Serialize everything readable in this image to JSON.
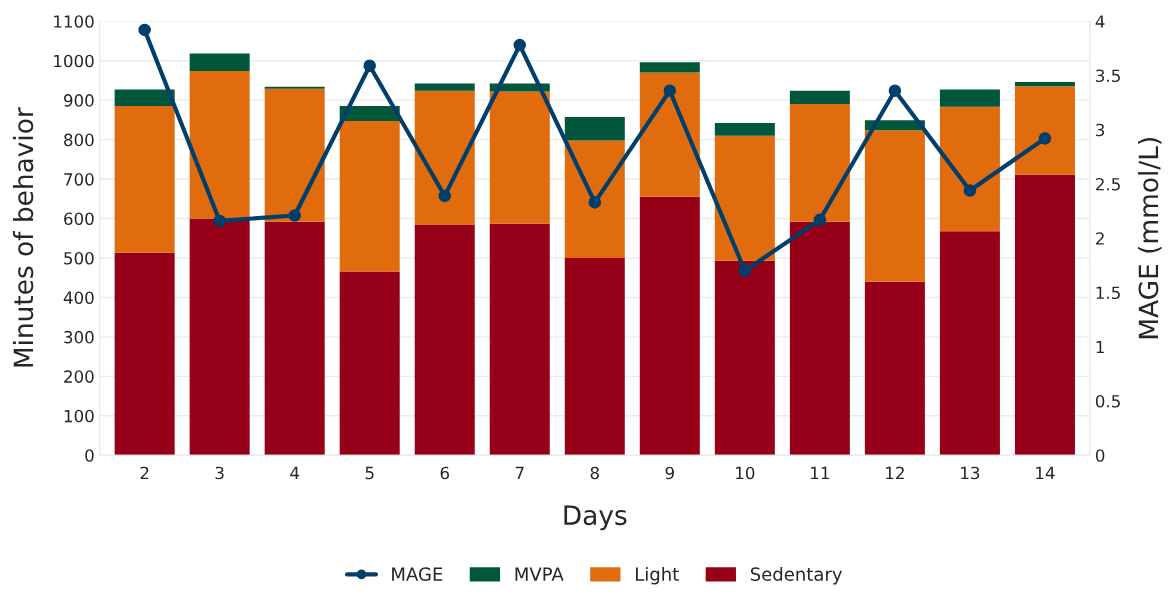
{
  "chart_data": {
    "type": "bar",
    "stacked": true,
    "xlabel": "Days",
    "ylabel": "Minutes of behavior",
    "y2label": "MAGE (mmol/L)",
    "categories": [
      "2",
      "3",
      "4",
      "5",
      "6",
      "7",
      "8",
      "9",
      "10",
      "11",
      "12",
      "13",
      "14"
    ],
    "series": [
      {
        "name": "Sedentary",
        "color": "#960018",
        "values": [
          513,
          600,
          592,
          466,
          585,
          587,
          500,
          655,
          493,
          592,
          440,
          568,
          711
        ]
      },
      {
        "name": "Light",
        "color": "#e06c0e",
        "values": [
          372,
          374,
          337,
          381,
          339,
          335,
          298,
          315,
          317,
          298,
          384,
          315,
          224
        ]
      },
      {
        "name": "MVPA",
        "color": "#00573c",
        "values": [
          42,
          44,
          5,
          38,
          18,
          20,
          59,
          26,
          32,
          34,
          25,
          44,
          11
        ]
      },
      {
        "name": "MAGE",
        "type": "line",
        "axis": "y2",
        "color": "#003f6b",
        "marker": "circle",
        "values": [
          3.92,
          2.16,
          2.21,
          3.59,
          2.39,
          3.78,
          2.33,
          3.36,
          1.7,
          2.17,
          3.36,
          2.44,
          2.92
        ]
      }
    ],
    "ylim": [
      0,
      1100
    ],
    "yticks": [
      0,
      100,
      200,
      300,
      400,
      500,
      600,
      700,
      800,
      900,
      1000,
      1100
    ],
    "y2lim": [
      0,
      4
    ],
    "y2ticks": [
      0,
      0.5,
      1,
      1.5,
      2,
      2.5,
      3,
      3.5,
      4
    ],
    "grid": "y",
    "legend": "bottom"
  }
}
